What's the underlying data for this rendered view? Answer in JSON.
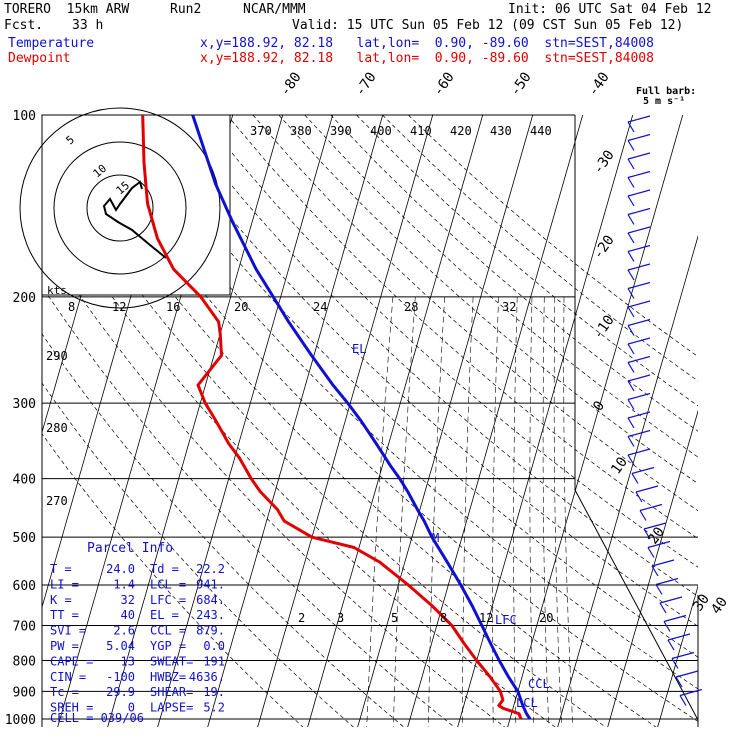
{
  "header": {
    "model": "TORERO  15km ARW",
    "run": "Run2",
    "org": "NCAR/MMM",
    "init": "Init: 06 UTC Sat 04 Feb 12",
    "fcst_label": "Fcst.",
    "fcst_value": "33 h",
    "valid": "Valid: 15 UTC Sun 05 Feb 12 (09 CST Sun 05 Feb 12)"
  },
  "legend": {
    "temperature": {
      "label": "Temperature",
      "info": "x,y=188.92, 82.18   lat,lon=  0.90, -89.60  stn=SEST,84008",
      "color": "#1010d0"
    },
    "dewpoint": {
      "label": "Dewpoint",
      "info": "x,y=188.92, 82.18   lat,lon=  0.90, -89.60  stn=SEST,84008",
      "color": "#e00000"
    }
  },
  "barb_title": {
    "line1": "Full barb:",
    "line2": "5 m s⁻¹"
  },
  "hodograph": {
    "units": "kts",
    "ring_labels": [
      "5",
      "10",
      "15"
    ]
  },
  "parcel_info": {
    "title": "Parcel Info",
    "rows": [
      [
        "T   =",
        "24.0",
        "Td  =",
        "22.2"
      ],
      [
        "LI  =",
        "1.4",
        "LCL =",
        "941."
      ],
      [
        "K   =",
        "32",
        "LFC =",
        "684."
      ],
      [
        "TT  =",
        "40",
        "EL  =",
        "243."
      ],
      [
        "SVI =",
        "2.6",
        "CCL =",
        "879."
      ],
      [
        "PW  =",
        "5.04",
        "YGP =",
        "0.0"
      ],
      [
        "CAPE =",
        "13",
        "SWEAT=",
        "191"
      ],
      [
        "CIN  =",
        "-100",
        "HWBZ=",
        "4636."
      ],
      [
        "Tc   =",
        "29.9",
        "SHEAR=",
        "19."
      ],
      [
        "SREH =",
        "0",
        "LAPSE=",
        "5.2"
      ]
    ],
    "cell": "CELL = 039/06"
  },
  "chart_data": {
    "type": "line",
    "title": "",
    "pressure_levels": [
      "100",
      "200",
      "300",
      "400",
      "500",
      "600",
      "700",
      "800",
      "900",
      "1000"
    ],
    "isotherm_labels": [
      "-80",
      "-70",
      "-60",
      "-50",
      "-40",
      "-30",
      "-20",
      "-10",
      "0",
      "10",
      "20",
      "30",
      "40"
    ],
    "theta_labels": [
      "370",
      "380",
      "390",
      "400",
      "410",
      "420",
      "430",
      "440"
    ],
    "theta_side_labels": [
      "290",
      "280",
      "270"
    ],
    "mixing_ratio_labels_upper": [
      "8",
      "12",
      "16",
      "20",
      "24",
      "28",
      "32"
    ],
    "mixing_ratio_labels_lower": [
      "2",
      "3",
      "5",
      "8",
      "12",
      "20"
    ],
    "level_annotations": {
      "el": "EL",
      "lfc": "LFC",
      "ccl": "CCL",
      "lcl": "LCL",
      "m": "M"
    },
    "series": [
      {
        "name": "Temperature",
        "color": "#1010d0",
        "p": [
          1000,
          980,
          950,
          900,
          850,
          800,
          750,
          700,
          650,
          600,
          550,
          500,
          470,
          450,
          420,
          400,
          380,
          350,
          320,
          300,
          280,
          250,
          220,
          200,
          180,
          150,
          130,
          100
        ],
        "t": [
          24.0,
          23.0,
          21.8,
          20.0,
          17.2,
          14.5,
          11.8,
          9.0,
          6.0,
          2.5,
          -1.5,
          -6.0,
          -8.5,
          -10.5,
          -13.5,
          -15.8,
          -18.5,
          -22.5,
          -27.0,
          -30.5,
          -34.5,
          -40.5,
          -47.0,
          -51.5,
          -56.5,
          -64.0,
          -69.5,
          -78.0
        ]
      },
      {
        "name": "Dewpoint",
        "color": "#e00000",
        "p": [
          1000,
          980,
          960,
          950,
          930,
          900,
          850,
          800,
          750,
          700,
          650,
          600,
          550,
          520,
          500,
          470,
          450,
          420,
          400,
          370,
          350,
          320,
          300,
          280,
          250,
          230,
          220,
          200,
          180,
          160,
          140,
          120,
          100
        ],
        "t": [
          22.2,
          21.5,
          18.0,
          17.0,
          17.5,
          16.5,
          13.5,
          10.0,
          6.5,
          3.0,
          -2.0,
          -8.0,
          -15.0,
          -21.0,
          -30.0,
          -36.5,
          -38.5,
          -43.0,
          -45.5,
          -49.0,
          -52.0,
          -56.0,
          -59.0,
          -61.5,
          -58.5,
          -60.0,
          -61.0,
          -66.0,
          -73.0,
          -78.0,
          -82.0,
          -85.0,
          -88.0
        ]
      }
    ],
    "xlim": [
      -40,
      40
    ],
    "ylim": [
      1050,
      100
    ],
    "yscale": "log"
  }
}
